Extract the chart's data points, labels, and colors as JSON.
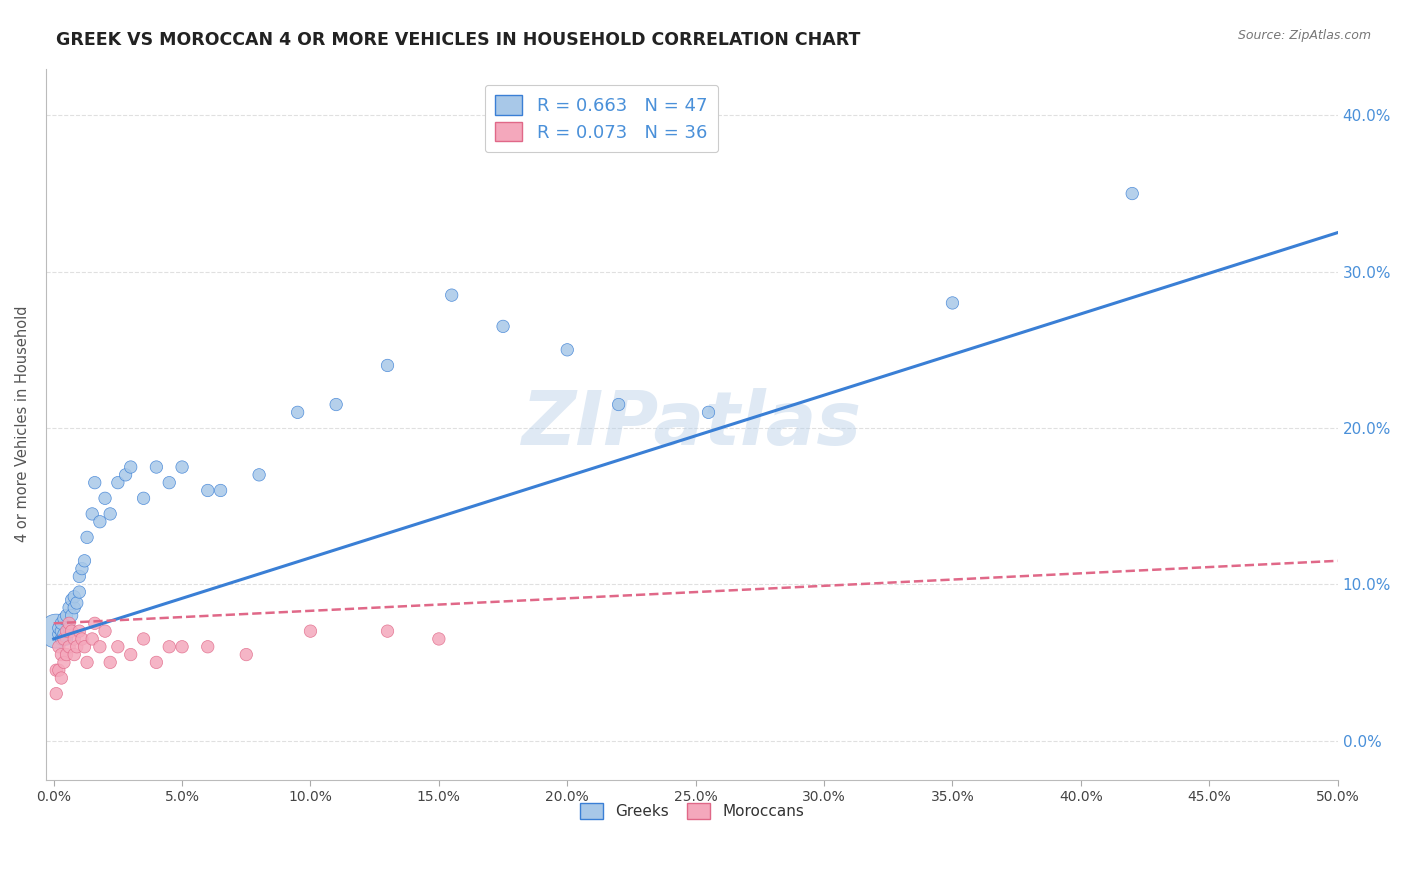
{
  "title": "GREEK VS MOROCCAN 4 OR MORE VEHICLES IN HOUSEHOLD CORRELATION CHART",
  "source": "Source: ZipAtlas.com",
  "ylabel": "4 or more Vehicles in Household",
  "xlabel": "",
  "watermark": "ZIPatlas",
  "greek_R": 0.663,
  "greek_N": 47,
  "moroccan_R": 0.073,
  "moroccan_N": 36,
  "greek_color": "#a8c8e8",
  "moroccan_color": "#f4a8bc",
  "greek_line_color": "#3a7fd5",
  "moroccan_line_color": "#e06888",
  "right_axis_color": "#4a90d9",
  "xlim": [
    -0.003,
    0.5
  ],
  "ylim": [
    -0.025,
    0.43
  ],
  "xticks": [
    0.0,
    0.05,
    0.1,
    0.15,
    0.2,
    0.25,
    0.3,
    0.35,
    0.4,
    0.45,
    0.5
  ],
  "yticks": [
    0.0,
    0.1,
    0.2,
    0.3,
    0.4
  ],
  "greek_line_x0": 0.0,
  "greek_line_y0": 0.065,
  "greek_line_x1": 0.5,
  "greek_line_y1": 0.325,
  "moroccan_line_x0": 0.0,
  "moroccan_line_y0": 0.075,
  "moroccan_line_x1": 0.5,
  "moroccan_line_y1": 0.115,
  "greek_x": [
    0.001,
    0.002,
    0.002,
    0.003,
    0.003,
    0.003,
    0.004,
    0.004,
    0.005,
    0.005,
    0.006,
    0.006,
    0.007,
    0.007,
    0.008,
    0.008,
    0.009,
    0.01,
    0.01,
    0.011,
    0.012,
    0.013,
    0.015,
    0.016,
    0.018,
    0.02,
    0.022,
    0.025,
    0.028,
    0.03,
    0.035,
    0.04,
    0.045,
    0.05,
    0.06,
    0.065,
    0.08,
    0.095,
    0.11,
    0.13,
    0.155,
    0.175,
    0.2,
    0.22,
    0.255,
    0.35,
    0.42
  ],
  "greek_y": [
    0.07,
    0.068,
    0.072,
    0.065,
    0.07,
    0.075,
    0.068,
    0.078,
    0.065,
    0.08,
    0.072,
    0.085,
    0.08,
    0.09,
    0.085,
    0.092,
    0.088,
    0.095,
    0.105,
    0.11,
    0.115,
    0.13,
    0.145,
    0.165,
    0.14,
    0.155,
    0.145,
    0.165,
    0.17,
    0.175,
    0.155,
    0.175,
    0.165,
    0.175,
    0.16,
    0.16,
    0.17,
    0.21,
    0.215,
    0.24,
    0.285,
    0.265,
    0.25,
    0.215,
    0.21,
    0.28,
    0.35
  ],
  "greek_sizes": [
    600,
    80,
    80,
    80,
    80,
    80,
    80,
    80,
    80,
    80,
    80,
    80,
    80,
    80,
    80,
    80,
    80,
    80,
    80,
    80,
    80,
    80,
    80,
    80,
    80,
    80,
    80,
    80,
    80,
    80,
    80,
    80,
    80,
    80,
    80,
    80,
    80,
    80,
    80,
    80,
    80,
    80,
    80,
    80,
    80,
    80,
    80
  ],
  "moroccan_x": [
    0.001,
    0.001,
    0.002,
    0.002,
    0.003,
    0.003,
    0.004,
    0.004,
    0.005,
    0.005,
    0.006,
    0.006,
    0.007,
    0.008,
    0.008,
    0.009,
    0.01,
    0.011,
    0.012,
    0.013,
    0.015,
    0.016,
    0.018,
    0.02,
    0.022,
    0.025,
    0.03,
    0.035,
    0.04,
    0.045,
    0.05,
    0.06,
    0.075,
    0.1,
    0.13,
    0.15
  ],
  "moroccan_y": [
    0.045,
    0.03,
    0.06,
    0.045,
    0.055,
    0.04,
    0.065,
    0.05,
    0.07,
    0.055,
    0.075,
    0.06,
    0.07,
    0.065,
    0.055,
    0.06,
    0.07,
    0.065,
    0.06,
    0.05,
    0.065,
    0.075,
    0.06,
    0.07,
    0.05,
    0.06,
    0.055,
    0.065,
    0.05,
    0.06,
    0.06,
    0.06,
    0.055,
    0.07,
    0.07,
    0.065
  ],
  "moroccan_sizes": [
    80,
    80,
    80,
    80,
    80,
    80,
    80,
    80,
    80,
    80,
    80,
    80,
    80,
    80,
    80,
    80,
    80,
    80,
    80,
    80,
    80,
    80,
    80,
    80,
    80,
    80,
    80,
    80,
    80,
    80,
    80,
    80,
    80,
    80,
    80,
    80
  ],
  "background_color": "#ffffff",
  "grid_color": "#dddddd"
}
